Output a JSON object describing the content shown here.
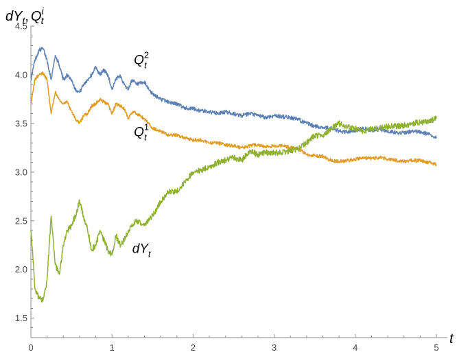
{
  "chart_data": {
    "type": "line",
    "title": "",
    "xlabel": "t",
    "ylabel": {
      "main": "dY",
      "sub": "t",
      "sep": ",",
      "main2": "Q",
      "sub2": "t",
      "sup2": "i"
    },
    "xlim": [
      0,
      5
    ],
    "ylim": [
      1.3,
      4.5
    ],
    "xticks": [
      "0",
      "1",
      "2",
      "3",
      "4",
      "5"
    ],
    "yticks": [
      "1.5",
      "2.0",
      "2.5",
      "3.0",
      "3.5",
      "4.0",
      "4.5"
    ],
    "series": [
      {
        "name": {
          "main": "Q",
          "sub": "t",
          "sup": "2"
        },
        "color": "#5e81b5",
        "noise": 0.04,
        "label_at": [
          1.27,
          4.11
        ],
        "points": [
          [
            0,
            3.95
          ],
          [
            0.05,
            4.15
          ],
          [
            0.1,
            4.25
          ],
          [
            0.15,
            4.27
          ],
          [
            0.2,
            4.15
          ],
          [
            0.25,
            3.95
          ],
          [
            0.3,
            4.2
          ],
          [
            0.35,
            4.1
          ],
          [
            0.4,
            3.95
          ],
          [
            0.45,
            4.0
          ],
          [
            0.5,
            3.95
          ],
          [
            0.55,
            3.85
          ],
          [
            0.6,
            3.82
          ],
          [
            0.65,
            3.9
          ],
          [
            0.7,
            3.95
          ],
          [
            0.75,
            4.0
          ],
          [
            0.8,
            4.08
          ],
          [
            0.85,
            4.0
          ],
          [
            0.9,
            4.05
          ],
          [
            0.95,
            4.0
          ],
          [
            1.0,
            3.85
          ],
          [
            1.05,
            3.95
          ],
          [
            1.1,
            4.0
          ],
          [
            1.15,
            3.9
          ],
          [
            1.2,
            3.85
          ],
          [
            1.25,
            3.95
          ],
          [
            1.3,
            3.9
          ],
          [
            1.4,
            3.92
          ],
          [
            1.5,
            3.8
          ],
          [
            1.6,
            3.75
          ],
          [
            1.7,
            3.72
          ],
          [
            1.8,
            3.7
          ],
          [
            1.9,
            3.66
          ],
          [
            2.0,
            3.65
          ],
          [
            2.1,
            3.63
          ],
          [
            2.2,
            3.62
          ],
          [
            2.3,
            3.6
          ],
          [
            2.4,
            3.62
          ],
          [
            2.5,
            3.6
          ],
          [
            2.6,
            3.58
          ],
          [
            2.7,
            3.6
          ],
          [
            2.8,
            3.58
          ],
          [
            2.9,
            3.56
          ],
          [
            3.0,
            3.58
          ],
          [
            3.1,
            3.57
          ],
          [
            3.2,
            3.56
          ],
          [
            3.3,
            3.54
          ],
          [
            3.4,
            3.5
          ],
          [
            3.5,
            3.47
          ],
          [
            3.6,
            3.46
          ],
          [
            3.7,
            3.45
          ],
          [
            3.8,
            3.42
          ],
          [
            3.9,
            3.41
          ],
          [
            4.0,
            3.43
          ],
          [
            4.1,
            3.45
          ],
          [
            4.2,
            3.43
          ],
          [
            4.3,
            3.44
          ],
          [
            4.4,
            3.42
          ],
          [
            4.5,
            3.41
          ],
          [
            4.6,
            3.4
          ],
          [
            4.7,
            3.42
          ],
          [
            4.8,
            3.41
          ],
          [
            4.9,
            3.39
          ],
          [
            4.95,
            3.37
          ],
          [
            5.0,
            3.36
          ]
        ]
      },
      {
        "name": {
          "main": "Q",
          "sub": "t",
          "sup": "1"
        },
        "color": "#e19c24",
        "noise": 0.035,
        "label_at": [
          1.27,
          3.37
        ],
        "points": [
          [
            0,
            3.7
          ],
          [
            0.05,
            3.95
          ],
          [
            0.1,
            4.0
          ],
          [
            0.15,
            4.02
          ],
          [
            0.2,
            3.95
          ],
          [
            0.25,
            3.6
          ],
          [
            0.3,
            3.82
          ],
          [
            0.35,
            3.75
          ],
          [
            0.4,
            3.7
          ],
          [
            0.45,
            3.72
          ],
          [
            0.5,
            3.63
          ],
          [
            0.55,
            3.55
          ],
          [
            0.6,
            3.5
          ],
          [
            0.65,
            3.58
          ],
          [
            0.7,
            3.6
          ],
          [
            0.75,
            3.68
          ],
          [
            0.8,
            3.7
          ],
          [
            0.85,
            3.75
          ],
          [
            0.9,
            3.72
          ],
          [
            0.95,
            3.7
          ],
          [
            1.0,
            3.6
          ],
          [
            1.05,
            3.7
          ],
          [
            1.1,
            3.68
          ],
          [
            1.15,
            3.65
          ],
          [
            1.2,
            3.55
          ],
          [
            1.25,
            3.62
          ],
          [
            1.3,
            3.6
          ],
          [
            1.4,
            3.55
          ],
          [
            1.5,
            3.45
          ],
          [
            1.6,
            3.42
          ],
          [
            1.7,
            3.38
          ],
          [
            1.8,
            3.38
          ],
          [
            1.9,
            3.35
          ],
          [
            2.0,
            3.33
          ],
          [
            2.1,
            3.33
          ],
          [
            2.2,
            3.3
          ],
          [
            2.3,
            3.3
          ],
          [
            2.4,
            3.28
          ],
          [
            2.5,
            3.27
          ],
          [
            2.6,
            3.25
          ],
          [
            2.7,
            3.27
          ],
          [
            2.8,
            3.28
          ],
          [
            2.9,
            3.26
          ],
          [
            3.0,
            3.27
          ],
          [
            3.1,
            3.27
          ],
          [
            3.2,
            3.25
          ],
          [
            3.3,
            3.24
          ],
          [
            3.4,
            3.18
          ],
          [
            3.5,
            3.17
          ],
          [
            3.6,
            3.16
          ],
          [
            3.7,
            3.12
          ],
          [
            3.8,
            3.11
          ],
          [
            3.9,
            3.12
          ],
          [
            4.0,
            3.13
          ],
          [
            4.1,
            3.15
          ],
          [
            4.2,
            3.14
          ],
          [
            4.3,
            3.15
          ],
          [
            4.4,
            3.13
          ],
          [
            4.5,
            3.12
          ],
          [
            4.6,
            3.11
          ],
          [
            4.7,
            3.12
          ],
          [
            4.8,
            3.12
          ],
          [
            4.9,
            3.1
          ],
          [
            4.95,
            3.09
          ],
          [
            5.0,
            3.08
          ]
        ]
      },
      {
        "name": {
          "main": "dY",
          "sub": "t",
          "sup": ""
        },
        "color": "#8fb131",
        "noise": 0.06,
        "label_at": [
          1.25,
          2.17
        ],
        "points": [
          [
            0,
            2.4
          ],
          [
            0.02,
            2.2
          ],
          [
            0.05,
            1.8
          ],
          [
            0.08,
            1.75
          ],
          [
            0.1,
            1.7
          ],
          [
            0.15,
            1.68
          ],
          [
            0.2,
            1.9
          ],
          [
            0.25,
            2.55
          ],
          [
            0.3,
            2.05
          ],
          [
            0.35,
            1.95
          ],
          [
            0.4,
            2.25
          ],
          [
            0.45,
            2.4
          ],
          [
            0.5,
            2.45
          ],
          [
            0.55,
            2.55
          ],
          [
            0.6,
            2.7
          ],
          [
            0.65,
            2.55
          ],
          [
            0.7,
            2.4
          ],
          [
            0.75,
            2.2
          ],
          [
            0.8,
            2.25
          ],
          [
            0.85,
            2.4
          ],
          [
            0.9,
            2.3
          ],
          [
            0.95,
            2.2
          ],
          [
            1.0,
            2.15
          ],
          [
            1.05,
            2.35
          ],
          [
            1.1,
            2.25
          ],
          [
            1.15,
            2.3
          ],
          [
            1.2,
            2.4
          ],
          [
            1.3,
            2.5
          ],
          [
            1.4,
            2.45
          ],
          [
            1.5,
            2.55
          ],
          [
            1.6,
            2.7
          ],
          [
            1.7,
            2.8
          ],
          [
            1.8,
            2.8
          ],
          [
            1.9,
            2.9
          ],
          [
            2.0,
            3.0
          ],
          [
            2.1,
            3.02
          ],
          [
            2.2,
            3.05
          ],
          [
            2.3,
            3.1
          ],
          [
            2.4,
            3.12
          ],
          [
            2.5,
            3.15
          ],
          [
            2.6,
            3.12
          ],
          [
            2.7,
            3.22
          ],
          [
            2.8,
            3.18
          ],
          [
            2.9,
            3.2
          ],
          [
            3.0,
            3.2
          ],
          [
            3.1,
            3.2
          ],
          [
            3.2,
            3.22
          ],
          [
            3.3,
            3.24
          ],
          [
            3.4,
            3.3
          ],
          [
            3.5,
            3.38
          ],
          [
            3.6,
            3.37
          ],
          [
            3.7,
            3.45
          ],
          [
            3.8,
            3.5
          ],
          [
            3.9,
            3.46
          ],
          [
            4.0,
            3.45
          ],
          [
            4.1,
            3.42
          ],
          [
            4.2,
            3.44
          ],
          [
            4.3,
            3.45
          ],
          [
            4.4,
            3.47
          ],
          [
            4.5,
            3.47
          ],
          [
            4.6,
            3.48
          ],
          [
            4.7,
            3.5
          ],
          [
            4.8,
            3.51
          ],
          [
            4.9,
            3.52
          ],
          [
            5.0,
            3.55
          ]
        ]
      }
    ],
    "grid": false,
    "legend": "none"
  }
}
